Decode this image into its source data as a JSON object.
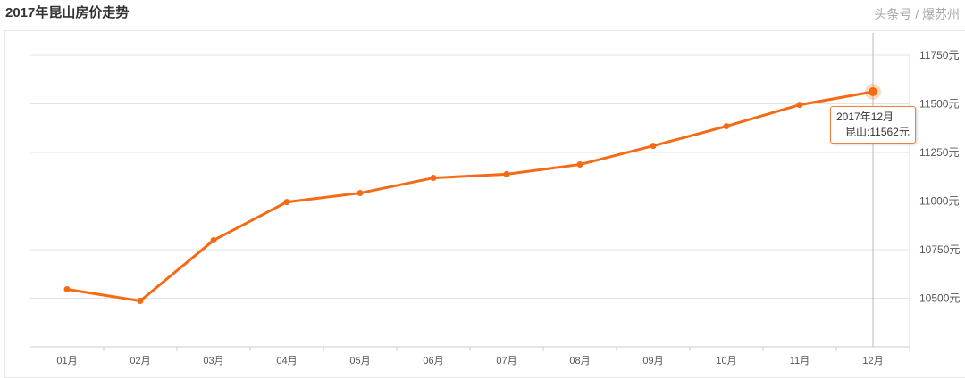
{
  "title": "2017年昆山房价走势",
  "chart_data": {
    "type": "line",
    "title": "2017年昆山房价走势",
    "categories": [
      "01月",
      "02月",
      "03月",
      "04月",
      "05月",
      "06月",
      "07月",
      "08月",
      "09月",
      "10月",
      "11月",
      "12月"
    ],
    "series": [
      {
        "name": "昆山",
        "values": [
          10546,
          10486,
          10798,
          10995,
          11041,
          11119,
          11138,
          11188,
          11284,
          11385,
          11495,
          11562
        ]
      }
    ],
    "yticks": [
      "10500元",
      "10750元",
      "11000元",
      "11250元",
      "11500元",
      "11750元"
    ],
    "ylim": [
      10250,
      11750
    ],
    "grid": true,
    "color": "#f56a14"
  },
  "tooltip": {
    "line1": "2017年12月",
    "series": "昆山",
    "value": "11562元"
  },
  "watermark": "头条号 / 爆苏州"
}
